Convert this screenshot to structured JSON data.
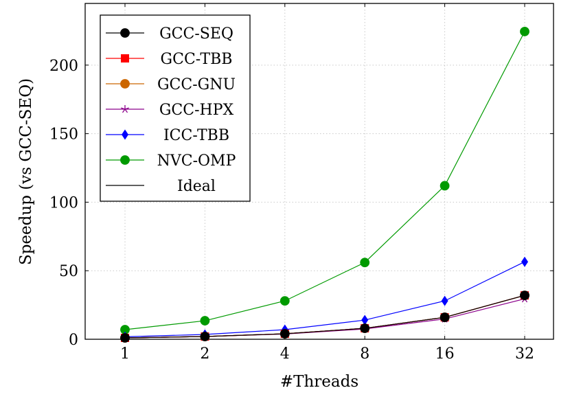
{
  "chart_data": {
    "type": "line",
    "categories": [
      "1",
      "2",
      "4",
      "8",
      "16",
      "32"
    ],
    "xlabel": "#Threads",
    "ylabel": "Speedup (vs GCC-SEQ)",
    "ylim": [
      0,
      245
    ],
    "yticks": [
      0,
      50,
      100,
      150,
      200
    ],
    "grid": true,
    "legend_position": "top-left",
    "series": [
      {
        "name": "GCC-SEQ",
        "color": "#000000",
        "marker": "circle",
        "values": [
          1,
          2,
          4,
          8,
          16,
          32
        ]
      },
      {
        "name": "GCC-TBB",
        "color": "#ff0000",
        "marker": "square",
        "values": [
          1,
          2,
          4,
          8,
          16,
          32
        ]
      },
      {
        "name": "GCC-GNU",
        "color": "#cc6600",
        "marker": "circle",
        "values": [
          1,
          2,
          4,
          8,
          16,
          32
        ]
      },
      {
        "name": "GCC-HPX",
        "color": "#8b008b",
        "marker": "star",
        "values": [
          1,
          2,
          3.8,
          7.5,
          14.8,
          29.5
        ]
      },
      {
        "name": "ICC-TBB",
        "color": "#0000ff",
        "marker": "diamond",
        "values": [
          1.8,
          3.5,
          7,
          14,
          28,
          56.5
        ]
      },
      {
        "name": "NVC-OMP",
        "color": "#009a00",
        "marker": "circle",
        "values": [
          7,
          13.5,
          28,
          56,
          112,
          224.5
        ]
      },
      {
        "name": "Ideal",
        "color": "#000000",
        "marker": "none",
        "values": [
          1,
          2,
          4,
          8,
          16,
          32
        ]
      }
    ]
  }
}
